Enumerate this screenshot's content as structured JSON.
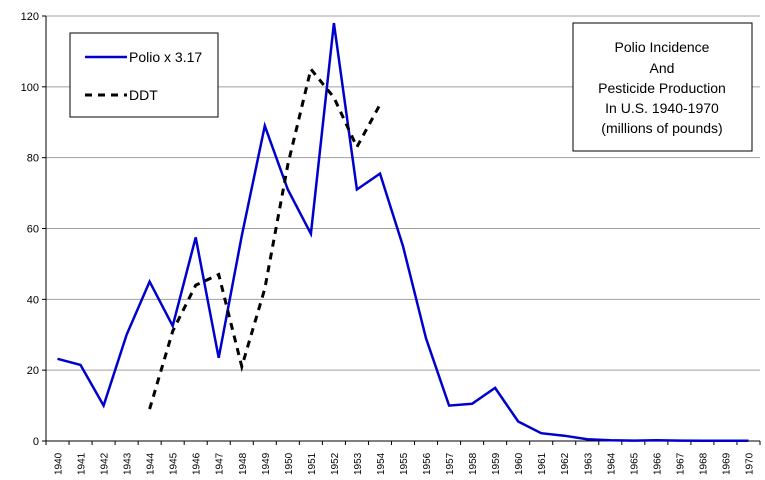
{
  "chart_data": {
    "type": "line",
    "title": [
      "Polio Incidence",
      "And",
      "Pesticide Production",
      "In U.S. 1940-1970",
      "(millions of pounds)"
    ],
    "xlabel": "",
    "ylabel": "",
    "ylim": [
      0,
      120
    ],
    "yticks": [
      0,
      20,
      40,
      60,
      80,
      100,
      120
    ],
    "grid": true,
    "legend_position": "top-left",
    "categories": [
      "1940",
      "1941",
      "1942",
      "1943",
      "1944",
      "1945",
      "1946",
      "1947",
      "1948",
      "1949",
      "1950",
      "1951",
      "1952",
      "1953",
      "1954",
      "1955",
      "1956",
      "1957",
      "1958",
      "1959",
      "1960",
      "1961",
      "1962",
      "1963",
      "1964",
      "1965",
      "1966",
      "1967",
      "1968",
      "1969",
      "1970"
    ],
    "series": [
      {
        "name": "Polio x 3.17",
        "style": "solid",
        "color": "#0000cc",
        "values": [
          23.2,
          21.5,
          10.0,
          30.0,
          45.0,
          32.5,
          57.5,
          23.5,
          58.0,
          89.0,
          71.0,
          58.5,
          118.0,
          71.0,
          75.5,
          55.0,
          29.0,
          10.0,
          10.5,
          15.0,
          5.5,
          2.2,
          1.5,
          0.5,
          0.2,
          0.1,
          0.2,
          0.1,
          0.05,
          0.05,
          0.05
        ]
      },
      {
        "name": "DDT",
        "style": "dashed",
        "color": "#000000",
        "values": [
          null,
          null,
          null,
          null,
          9.0,
          31.0,
          44.0,
          47.0,
          21.0,
          43.0,
          78.0,
          105.0,
          97.0,
          83.0,
          95.0,
          null,
          null,
          null,
          null,
          null,
          null,
          null,
          null,
          null,
          null,
          null,
          null,
          null,
          null,
          null,
          null
        ]
      }
    ]
  }
}
